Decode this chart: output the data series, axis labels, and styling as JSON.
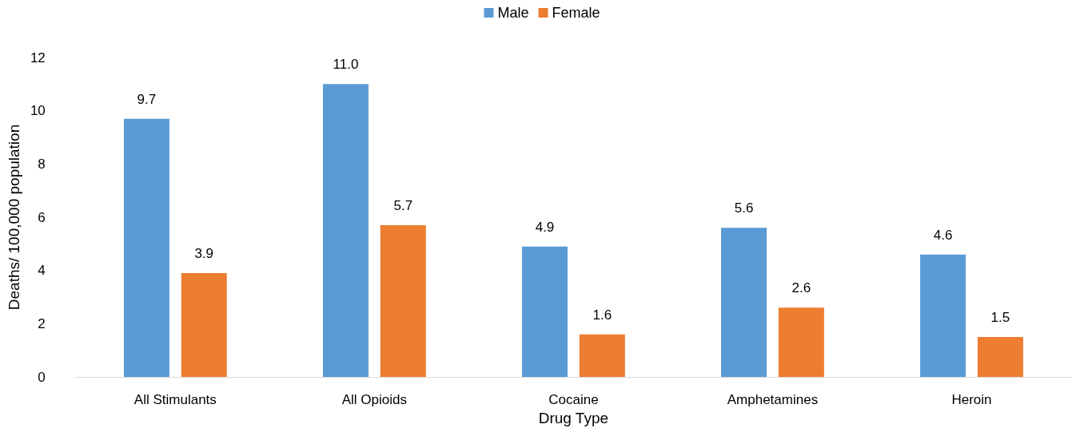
{
  "chart_data": {
    "type": "bar",
    "xlabel": "Drug Type",
    "ylabel": "Deaths/ 100,000 population",
    "categories": [
      "All Stimulants",
      "All Opioids",
      "Cocaine",
      "Amphetamines",
      "Heroin"
    ],
    "series": [
      {
        "name": "Male",
        "color": "#5b9bd5",
        "values": [
          9.7,
          11.0,
          4.9,
          5.6,
          4.6
        ],
        "value_labels": [
          "9.7",
          "11.0",
          "4.9",
          "5.6",
          "4.6"
        ]
      },
      {
        "name": "Female",
        "color": "#ed7d31",
        "values": [
          3.9,
          5.7,
          1.6,
          2.6,
          1.5
        ],
        "value_labels": [
          "3.9",
          "5.7",
          "1.6",
          "2.6",
          "1.5"
        ]
      }
    ],
    "ylim": [
      0,
      12
    ],
    "yticks": [
      0,
      2,
      4,
      6,
      8,
      10,
      12
    ],
    "grid": false,
    "legend": "top"
  }
}
